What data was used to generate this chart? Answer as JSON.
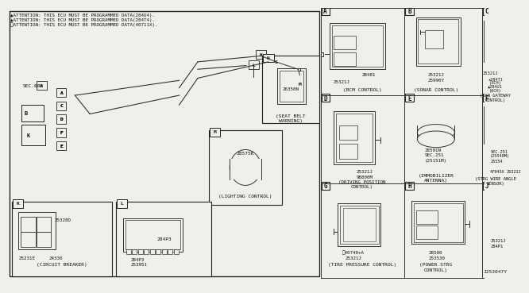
{
  "bg_color": "#f0f0eb",
  "border_color": "#222222",
  "line_color": "#333333",
  "text_color": "#111111",
  "attention_lines": [
    "▲ATTENTION: THIS ECU MUST BE PROGRAMMED DATA(284U4).",
    "▲ATTENTION: THIS ECU MUST BE PROGRAMMED DATA(284T4).",
    "※ATTENTION: THIS ECU MUST BE PROGRAMMED DATA(40711X)."
  ],
  "part_numbers": {
    "A": [
      "28481",
      "25321J"
    ],
    "B": [
      "25321J",
      "25990Y"
    ],
    "C": [
      "25321J",
      "★284T1(3CH)",
      "▲284U1(6CH)"
    ],
    "D": [
      "25321J",
      "98800M"
    ],
    "E": [
      "28591N",
      "SEC.251",
      "(25151M)"
    ],
    "F": [
      "SEC.251",
      "(25540M)",
      "25554",
      "47945X",
      "25321J"
    ],
    "G": [
      "※40740+A",
      "25321J"
    ],
    "H": [
      "28500",
      "253530"
    ],
    "J": [
      "25321J",
      "284P1"
    ],
    "K": [
      "25328D",
      "25231E",
      "24330"
    ],
    "L": [
      "284P3",
      "253951"
    ],
    "M": [
      "28575K"
    ],
    "N": [
      "26350N"
    ]
  },
  "component_titles": {
    "A": "(BCM CONTROL)",
    "B": "(SONAR CONTROL)",
    "C": "(CAN GATEWAY CONTROL)",
    "D": "(DRIVING POSITION\nCONTROL)",
    "E": "(IMMOBILIZER\nANTENNA)",
    "F": "(STRG WIRE ANGLE\nSENSOR)",
    "G": "(TIRE PRESSURE CONTROL)",
    "H": "(POWER STRG\nCONTROL)",
    "K": "(CIRCUIT BREAKER)",
    "M": "(LIGHTING CONTROL)",
    "N": "(SEAT BELT\nWARNING)"
  },
  "sec_label": "SEC.680",
  "diagram_ref": "J253047Y",
  "grid_cols": [
    420,
    533,
    637
  ],
  "grid_rows": [
    372,
    255,
    137,
    10
  ]
}
